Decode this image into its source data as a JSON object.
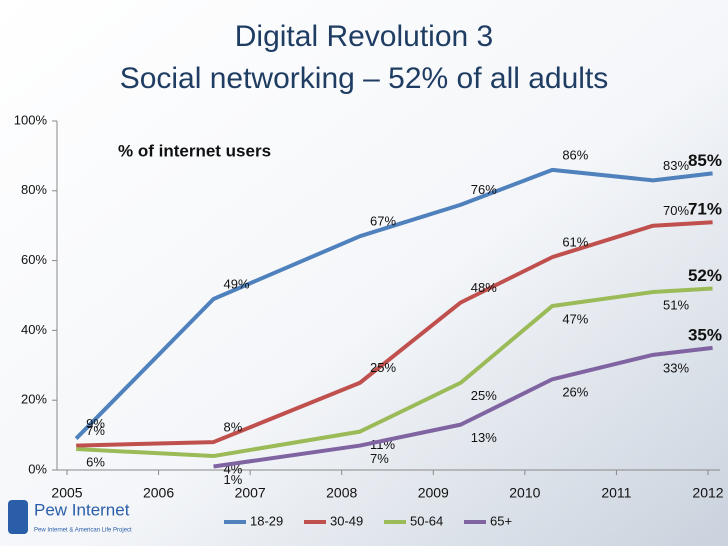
{
  "chart_data": {
    "type": "line",
    "title": "Digital Revolution 3",
    "subtitle": "Social networking – 52% of all adults",
    "annotation": "% of internet users",
    "logo": "Pew Internet",
    "logo_subtitle": "Pew Internet & American Life Project",
    "x": [
      2005.1,
      2006.6,
      2008.2,
      2009.3,
      2010.3,
      2011.4,
      2012.05
    ],
    "xlim": [
      2005,
      2012
    ],
    "xticks": [
      2005,
      2006,
      2007,
      2008,
      2009,
      2010,
      2011,
      2012
    ],
    "ylim": [
      0,
      100
    ],
    "yticks": [
      {
        "value": 0,
        "label": "0%"
      },
      {
        "value": 20,
        "label": "20%"
      },
      {
        "value": 40,
        "label": "40%"
      },
      {
        "value": 60,
        "label": "60%"
      },
      {
        "value": 80,
        "label": "80%"
      },
      {
        "value": 100,
        "label": "100%"
      }
    ],
    "grid": false,
    "legend": "bottom",
    "series": [
      {
        "name": "18-29",
        "color": "#4f81bd",
        "values": [
          9,
          49,
          67,
          76,
          86,
          83,
          85
        ],
        "value_labels": [
          "9%",
          "49%",
          "67%",
          "76%",
          "86%",
          "83%",
          "85%"
        ]
      },
      {
        "name": "30-49",
        "color": "#c0504d",
        "values": [
          7,
          8,
          25,
          48,
          61,
          70,
          71
        ],
        "value_labels": [
          "7%",
          "8%",
          "25%",
          "48%",
          "61%",
          "70%",
          "71%"
        ]
      },
      {
        "name": "50-64",
        "color": "#9bbb59",
        "values": [
          6,
          4,
          11,
          25,
          47,
          51,
          52
        ],
        "value_labels": [
          "6%",
          "4%",
          "11%",
          "25%",
          "47%",
          "51%",
          "52%"
        ]
      },
      {
        "name": "65+",
        "color": "#8064a2",
        "values": [
          null,
          1,
          7,
          13,
          26,
          33,
          35
        ],
        "value_labels": [
          null,
          "1%",
          "7%",
          "13%",
          "26%",
          "33%",
          "35%"
        ]
      }
    ]
  }
}
